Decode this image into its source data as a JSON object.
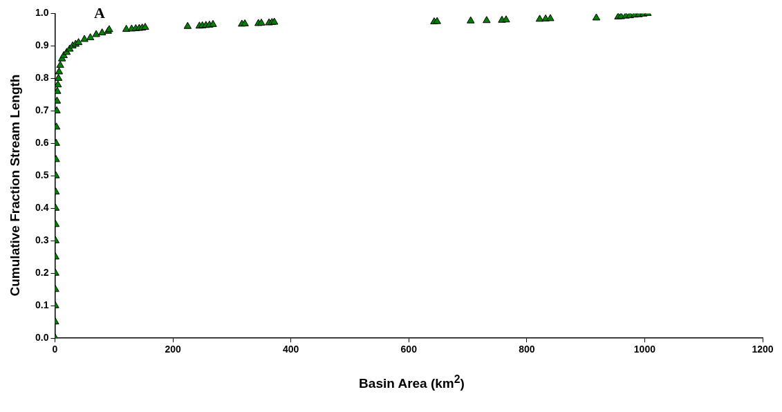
{
  "chart_data": {
    "type": "scatter",
    "title": "A",
    "xlabel": "Basin Area (km$^{2}$)",
    "ylabel": "Cumulative Fraction Stream Length",
    "xlim": [
      0,
      1200
    ],
    "xticks": [
      0,
      200,
      400,
      600,
      800,
      1000,
      1200
    ],
    "ylim": [
      0,
      1
    ],
    "yticks": [
      {
        "value": 0,
        "label": "0.0"
      },
      {
        "value": 0.1,
        "label": "0.1"
      },
      {
        "value": 0.2,
        "label": "0.2"
      },
      {
        "value": 0.3,
        "label": "0.3"
      },
      {
        "value": 0.4,
        "label": "0.4"
      },
      {
        "value": 0.5,
        "label": "0.5"
      },
      {
        "value": 0.6,
        "label": "0.6"
      },
      {
        "value": 0.7,
        "label": "0.7"
      },
      {
        "value": 0.8,
        "label": "0.8"
      },
      {
        "value": 0.9,
        "label": "0.9"
      },
      {
        "value": 1,
        "label": "1.0"
      }
    ],
    "grid": false,
    "legend": false,
    "marker": "triangle",
    "series": [
      {
        "color": "#008000",
        "x": [
          0.5,
          0.5,
          0.6,
          0.7,
          0.8,
          0.9,
          1,
          1.1,
          1.2,
          1.4,
          1.6,
          1.8,
          2,
          2.5,
          3,
          3.5,
          4,
          5,
          6,
          7,
          9,
          12,
          15,
          20,
          25,
          30,
          35,
          40,
          50,
          60,
          70,
          80,
          90,
          92,
          121,
          130,
          137,
          143,
          148,
          153,
          225,
          245,
          250,
          256,
          262,
          268,
          317,
          322,
          345,
          350,
          363,
          368,
          372,
          643,
          648,
          705,
          732,
          758,
          765,
          822,
          832,
          840,
          918,
          955,
          960,
          968,
          975,
          983,
          990,
          998,
          1005
        ],
        "values": [
          0.0,
          0.05,
          0.1,
          0.15,
          0.2,
          0.25,
          0.3,
          0.35,
          0.4,
          0.45,
          0.5,
          0.55,
          0.6,
          0.65,
          0.7,
          0.73,
          0.76,
          0.78,
          0.8,
          0.82,
          0.84,
          0.86,
          0.87,
          0.88,
          0.89,
          0.9,
          0.905,
          0.91,
          0.92,
          0.925,
          0.935,
          0.94,
          0.945,
          0.95,
          0.951,
          0.952,
          0.953,
          0.954,
          0.955,
          0.957,
          0.96,
          0.961,
          0.962,
          0.963,
          0.964,
          0.966,
          0.967,
          0.968,
          0.969,
          0.97,
          0.971,
          0.972,
          0.973,
          0.974,
          0.975,
          0.977,
          0.978,
          0.979,
          0.98,
          0.982,
          0.983,
          0.984,
          0.986,
          0.989,
          0.99,
          0.992,
          0.993,
          0.995,
          0.996,
          0.998,
          1.0
        ]
      }
    ]
  }
}
